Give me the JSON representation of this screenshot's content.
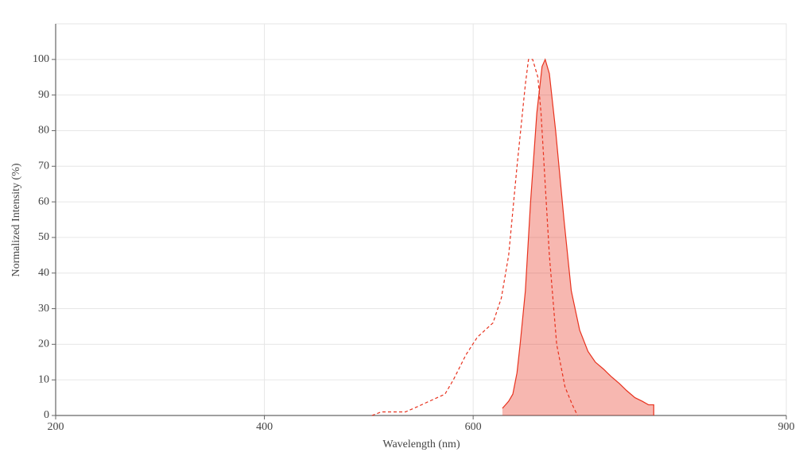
{
  "chart_data": {
    "type": "line",
    "x_label": "Wavelength (nm)",
    "y_label": "Normalized Intensity (%)",
    "xlim": [
      200,
      900
    ],
    "xticks": [
      200,
      400,
      600,
      900
    ],
    "ylim": [
      0,
      110
    ],
    "yticks": [
      0,
      10,
      20,
      30,
      40,
      50,
      60,
      70,
      80,
      90,
      100
    ],
    "grid": true,
    "series": [
      {
        "color": "#e8321e",
        "dash": true,
        "fill": false,
        "x": [
          503,
          512,
          535,
          543,
          558,
          573,
          581,
          593,
          604,
          619,
          627,
          634,
          642,
          650,
          653,
          657,
          662,
          665,
          673,
          680,
          688,
          695,
          700
        ],
        "values": [
          0,
          1,
          1,
          2,
          4,
          6,
          10,
          17,
          22,
          26,
          33,
          45,
          70,
          93,
          100,
          100,
          95,
          85,
          45,
          20,
          8,
          3,
          0
        ]
      },
      {
        "color": "#e8321e",
        "dash": false,
        "fill": true,
        "x": [
          628,
          634,
          638,
          642,
          645,
          650,
          655,
          661,
          666,
          669,
          673,
          679,
          687,
          694,
          702,
          710,
          717,
          725,
          732,
          740,
          747,
          755,
          762,
          768,
          773,
          773
        ],
        "values": [
          2,
          4,
          6,
          12,
          20,
          35,
          60,
          85,
          98,
          100,
          96,
          80,
          55,
          35,
          24,
          18,
          15,
          13,
          11,
          9,
          7,
          5,
          4,
          3,
          3,
          0
        ]
      }
    ]
  }
}
